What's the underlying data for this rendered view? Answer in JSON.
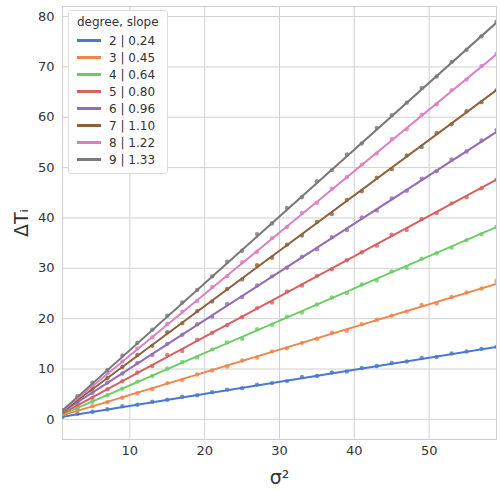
{
  "chart_data": {
    "type": "scatter",
    "x_label": "σ²",
    "y_label": "ΔTᵢ",
    "legend_title": "degree, slope",
    "legend": "upper left",
    "grid": true,
    "xlim": [
      1,
      59
    ],
    "xticks": [
      10,
      20,
      30,
      40,
      50
    ],
    "ylim": [
      -4,
      82
    ],
    "yticks": [
      0,
      10,
      20,
      30,
      40,
      50,
      60,
      70,
      80
    ],
    "x": [
      1,
      3,
      5,
      7,
      9,
      11,
      13,
      15,
      17,
      19,
      21,
      23,
      25,
      27,
      29,
      31,
      33,
      35,
      37,
      39,
      41,
      43,
      45,
      47,
      49,
      51,
      53,
      55,
      57,
      59
    ],
    "fit_x": [
      1,
      59
    ],
    "series": [
      {
        "name": "2 | 0.24",
        "color": "#4878d0",
        "marker": "dot",
        "line_style": "solid",
        "fit": [
          0.5,
          14.4
        ],
        "values": [
          0.5,
          1.1,
          1.5,
          2.0,
          2.6,
          2.9,
          3.5,
          3.9,
          4.5,
          4.8,
          5.4,
          5.9,
          6.2,
          6.9,
          7.2,
          7.6,
          8.4,
          8.6,
          9.3,
          9.5,
          10.2,
          10.6,
          11.2,
          11.5,
          12.2,
          12.4,
          13.1,
          13.5,
          14.0,
          14.4
        ]
      },
      {
        "name": "3 | 0.45",
        "color": "#ee854a",
        "marker": "dot",
        "line_style": "solid",
        "fit": [
          0.8,
          26.9
        ],
        "values": [
          0.8,
          1.7,
          2.6,
          3.4,
          4.3,
          5.2,
          6.0,
          7.2,
          7.8,
          8.9,
          9.7,
          10.5,
          11.7,
          12.3,
          13.5,
          14.1,
          15.2,
          16.0,
          17.2,
          17.6,
          18.9,
          19.8,
          20.6,
          21.4,
          22.7,
          23.0,
          24.3,
          25.2,
          26.0,
          27.5
        ]
      },
      {
        "name": "4 | 0.64",
        "color": "#6acc64",
        "marker": "dot",
        "line_style": "solid",
        "fit": [
          1.0,
          38.2
        ],
        "values": [
          1.0,
          2.2,
          3.5,
          4.8,
          6.1,
          7.5,
          8.6,
          10.1,
          11.4,
          12.3,
          13.9,
          15.3,
          16.0,
          17.9,
          18.8,
          20.4,
          21.2,
          22.8,
          24.2,
          25.1,
          26.8,
          27.6,
          29.4,
          30.1,
          31.9,
          33.0,
          34.1,
          35.6,
          36.8,
          38.2
        ]
      },
      {
        "name": "5 | 0.80",
        "color": "#d65f5f",
        "marker": "dot",
        "line_style": "solid",
        "fit": [
          1.2,
          47.6
        ],
        "values": [
          1.2,
          2.8,
          4.3,
          6.0,
          7.6,
          9.3,
          10.6,
          12.8,
          13.6,
          15.8,
          17.2,
          18.7,
          20.3,
          22.1,
          23.2,
          25.4,
          26.6,
          28.5,
          29.8,
          31.6,
          33.2,
          34.5,
          36.7,
          37.6,
          39.8,
          41.0,
          42.9,
          44.1,
          45.9,
          47.6
        ]
      },
      {
        "name": "6 | 0.96",
        "color": "#956cb4",
        "marker": "dot",
        "line_style": "solid",
        "fit": [
          1.5,
          57.1
        ],
        "values": [
          1.4,
          3.4,
          5.3,
          7.3,
          9.1,
          11.2,
          12.8,
          15.0,
          16.8,
          18.9,
          20.4,
          22.9,
          24.3,
          26.6,
          28.4,
          30.1,
          32.3,
          33.8,
          36.2,
          37.6,
          40.1,
          41.5,
          43.9,
          45.4,
          47.8,
          49.3,
          51.6,
          53.2,
          55.4,
          57.5
        ]
      },
      {
        "name": "7 | 1.10",
        "color": "#8c613c",
        "marker": "dot",
        "line_style": "solid",
        "fit": [
          1.6,
          65.4
        ],
        "values": [
          1.6,
          3.8,
          6.1,
          8.2,
          10.4,
          12.8,
          14.6,
          17.3,
          19.1,
          21.5,
          23.4,
          25.9,
          27.8,
          30.6,
          32.1,
          34.7,
          36.5,
          39.2,
          40.8,
          43.6,
          45.3,
          48.0,
          49.7,
          52.4,
          54.1,
          56.9,
          58.6,
          61.2,
          63.0,
          65.4
        ]
      },
      {
        "name": "8 | 1.22",
        "color": "#dc7ec0",
        "marker": "dot",
        "line_style": "solid",
        "fit": [
          1.7,
          72.5
        ],
        "values": [
          1.7,
          4.2,
          6.7,
          9.2,
          11.5,
          14.1,
          16.3,
          19.0,
          21.4,
          23.5,
          26.3,
          28.4,
          31.2,
          33.3,
          36.0,
          38.2,
          41.0,
          43.0,
          45.8,
          48.1,
          50.6,
          52.8,
          55.7,
          57.6,
          60.5,
          62.6,
          65.4,
          67.5,
          70.2,
          72.6
        ]
      },
      {
        "name": "9 | 1.33",
        "color": "#797979",
        "marker": "dot",
        "line_style": "solid",
        "fit": [
          1.8,
          78.8
        ],
        "values": [
          1.8,
          4.6,
          7.3,
          9.8,
          12.7,
          15.2,
          17.8,
          20.6,
          23.2,
          25.7,
          28.4,
          31.3,
          33.5,
          36.8,
          38.9,
          42.0,
          44.1,
          47.3,
          49.5,
          52.6,
          54.8,
          57.9,
          60.4,
          62.9,
          65.8,
          68.1,
          71.0,
          73.4,
          76.1,
          79.0
        ]
      }
    ]
  }
}
